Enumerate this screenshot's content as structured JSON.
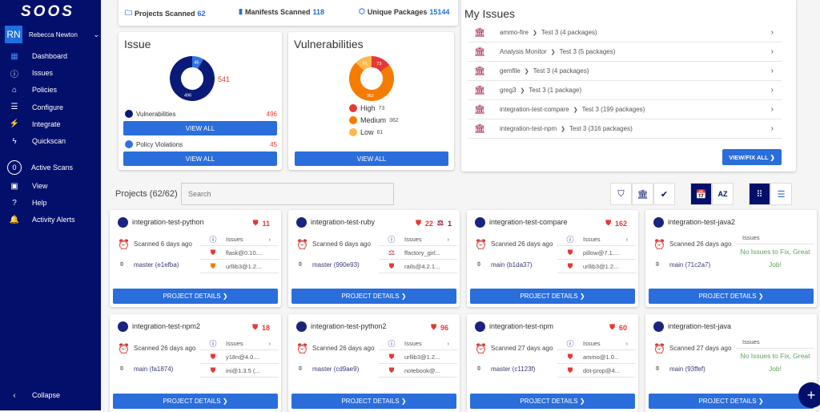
{
  "sidebar": {
    "logo": "SOOS",
    "user": {
      "initials": "RN",
      "name": "Rebecca Newton"
    },
    "items": [
      {
        "label": "Dashboard",
        "icon": "dashboard-icon",
        "glyph": "▦"
      },
      {
        "label": "Issues",
        "icon": "alert-circle-icon",
        "glyph": "ⓘ"
      },
      {
        "label": "Policies",
        "icon": "bank-icon",
        "glyph": "⌂"
      },
      {
        "label": "Configure",
        "icon": "sliders-icon",
        "glyph": "☰"
      },
      {
        "label": "Integrate",
        "icon": "plug-icon",
        "glyph": "⚡"
      },
      {
        "label": "Quickscan",
        "icon": "bolt-icon",
        "glyph": "ϟ"
      }
    ],
    "active_scans": {
      "count": "0",
      "label": "Active Scans"
    },
    "items2": [
      {
        "label": "View",
        "icon": "camera-icon",
        "glyph": "▣"
      },
      {
        "label": "Help",
        "icon": "help-icon",
        "glyph": "?"
      },
      {
        "label": "Activity Alerts",
        "icon": "bell-icon",
        "glyph": "🔔"
      }
    ],
    "collapse": "Collapse"
  },
  "stats": {
    "projects": {
      "label": "Projects Scanned",
      "value": "62"
    },
    "manifests": {
      "label": "Manifests Scanned",
      "value": "118"
    },
    "packages": {
      "label": "Unique Packages",
      "value": "15144"
    }
  },
  "issue": {
    "title": "Issue",
    "total": "541",
    "vuln_label": "Vulnerabilities",
    "vuln_value": "496",
    "policy_label": "Policy Violations",
    "policy_value": "45",
    "view_all": "VIEW ALL",
    "colors": {
      "vuln": "#0a1a78",
      "policy": "#2f74e0"
    }
  },
  "vulnerabilities": {
    "title": "Vulnerabilities",
    "view_all": "VIEW ALL",
    "segments": [
      {
        "label": "High",
        "value": 73,
        "color": "#e53935"
      },
      {
        "label": "Medium",
        "value": 362,
        "color": "#f57c00"
      },
      {
        "label": "Low",
        "value": 61,
        "color": "#ffb74d"
      }
    ]
  },
  "my_issues": {
    "title": "My Issues",
    "button": "VIEW/FIX ALL ❯",
    "rows": [
      {
        "name": "ammo-fire",
        "detail": "Test 3 (4 packages)"
      },
      {
        "name": "Analysis Monitor",
        "detail": "Test 3 (5 packages)"
      },
      {
        "name": "gemfile",
        "detail": "Test 3 (4 packages)"
      },
      {
        "name": "greg3",
        "detail": "Test 3 (1 package)"
      },
      {
        "name": "integration-test-compare",
        "detail": "Test 3 (199 packages)"
      },
      {
        "name": "integration-test-npm",
        "detail": "Test 3 (316 packages)"
      }
    ]
  },
  "projects": {
    "title": "Projects (62/62)",
    "search_placeholder": "Search",
    "details_label": "PROJECT DETAILS  ❯",
    "issues_label": "Issues",
    "no_issues": "No Issues to Fix, Great Job!",
    "cards": [
      {
        "name": "integration-test-python",
        "vuln": "11",
        "scanned": "Scanned 6 days ago",
        "branch": "master (e1efba)",
        "issues": [
          {
            "pkg": "flask@0.10....",
            "sev": "high"
          },
          {
            "pkg": "urllib3@1.2...",
            "sev": "medium"
          }
        ]
      },
      {
        "name": "integration-test-ruby",
        "vuln": "22",
        "license": "1",
        "scanned": "Scanned 6 days ago",
        "branch": "master (990e93)",
        "issues": [
          {
            "pkg": "ffactory_girl...",
            "sev": "license"
          },
          {
            "pkg": "rails@4.2.1...",
            "sev": "high"
          }
        ]
      },
      {
        "name": "integration-test-compare",
        "vuln": "162",
        "scanned": "Scanned 26 days ago",
        "branch": "main (b1da37)",
        "issues": [
          {
            "pkg": "pillow@7.1....",
            "sev": "high"
          },
          {
            "pkg": "urllib3@1.2...",
            "sev": "high"
          }
        ]
      },
      {
        "name": "integration-test-java2",
        "scanned": "Scanned 26 days ago",
        "branch": "main (71c2a7)",
        "issues": []
      },
      {
        "name": "integration-test-npm2",
        "vuln": "18",
        "scanned": "Scanned 26 days ago",
        "branch": "main (fa1874)",
        "issues": [
          {
            "pkg": "y18n@4.0....",
            "sev": "high"
          },
          {
            "pkg": "ini@1.3.5 (...",
            "sev": "high"
          }
        ]
      },
      {
        "name": "integration-test-python2",
        "vuln": "96",
        "scanned": "Scanned 26 days ago",
        "branch": "master (cd9ae9)",
        "issues": [
          {
            "pkg": "urllib3@1.2...",
            "sev": "high"
          },
          {
            "pkg": "notebook@...",
            "sev": "high"
          }
        ]
      },
      {
        "name": "integration-test-npm",
        "vuln": "60",
        "scanned": "Scanned 27 days ago",
        "branch": "master (c1123f)",
        "issues": [
          {
            "pkg": "ammo@1.0...",
            "sev": "high"
          },
          {
            "pkg": "dot-prop@4...",
            "sev": "high"
          }
        ]
      },
      {
        "name": "integration-test-java",
        "scanned": "Scanned 27 days ago",
        "branch": "main (93ffef)",
        "issues": []
      }
    ]
  },
  "fab": "+"
}
